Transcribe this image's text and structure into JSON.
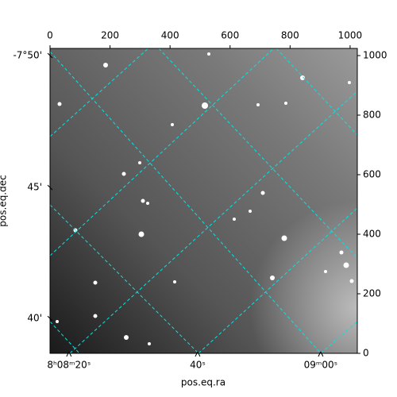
{
  "chart_data": {
    "type": "image",
    "xlabel": "pos.eq.ra",
    "ylabel": "pos.eq.dec",
    "xlim": [
      0,
      1024
    ],
    "ylim": [
      0,
      1024
    ],
    "xticks": [
      0,
      200,
      400,
      600,
      800,
      1000
    ],
    "yticks": [
      0,
      200,
      400,
      600,
      800,
      1000
    ],
    "ra_ticks": [
      {
        "value": 63,
        "label": "8ʰ08ᵐ20ˢ"
      },
      {
        "value": 492,
        "label": "40ˢ"
      },
      {
        "value": 902,
        "label": "09ᵐ00ˢ"
      }
    ],
    "dec_ticks": [
      {
        "value": 1000,
        "label": "-7°50'"
      },
      {
        "value": 557,
        "label": "45'"
      },
      {
        "value": 117,
        "label": "40'"
      }
    ],
    "grid_color": "#00e5e5"
  }
}
